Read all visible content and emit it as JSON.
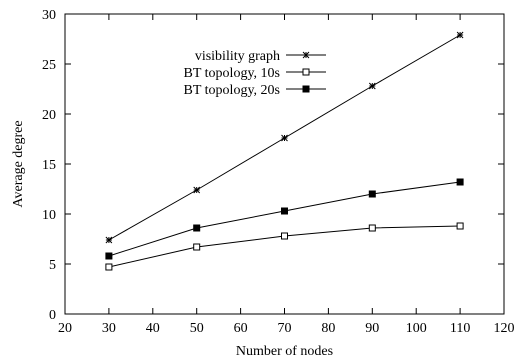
{
  "chart_data": {
    "type": "line",
    "xlabel": "Number of nodes",
    "ylabel": "Average degree",
    "xlim": [
      20,
      120
    ],
    "ylim": [
      0,
      30
    ],
    "xticks": [
      20,
      30,
      40,
      50,
      60,
      70,
      80,
      90,
      100,
      110,
      120
    ],
    "yticks": [
      0,
      5,
      10,
      15,
      20,
      25,
      30
    ],
    "grid": false,
    "legend_position": "top-right",
    "x": [
      30,
      50,
      70,
      90,
      110
    ],
    "series": [
      {
        "name": "visibility graph",
        "marker": "star",
        "values": [
          7.4,
          12.4,
          17.6,
          22.8,
          27.9
        ]
      },
      {
        "name": "BT topology, 10s",
        "marker": "open-square",
        "values": [
          4.7,
          6.7,
          7.8,
          8.6,
          8.8
        ]
      },
      {
        "name": "BT topology, 20s",
        "marker": "filled-square",
        "values": [
          5.8,
          8.6,
          10.3,
          12.0,
          13.2
        ]
      }
    ]
  }
}
